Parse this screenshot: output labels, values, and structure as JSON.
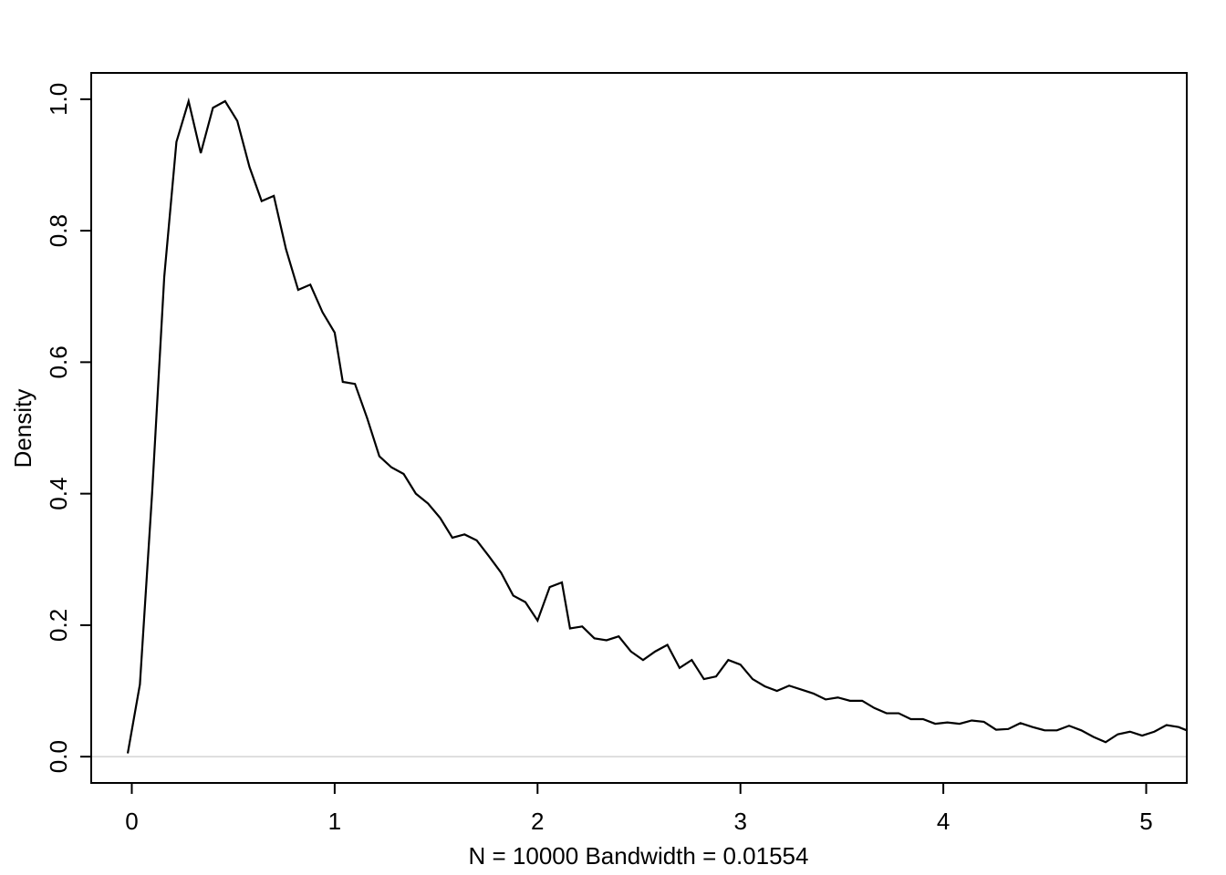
{
  "chart_data": {
    "type": "line",
    "title": "",
    "xlabel": "N = 10000   Bandwidth = 0.01554",
    "ylabel": "Density",
    "xlim": [
      -0.2,
      5.2
    ],
    "ylim": [
      -0.04,
      1.04
    ],
    "xticks": [
      0,
      1,
      2,
      3,
      4,
      5
    ],
    "xtick_labels": [
      "0",
      "1",
      "2",
      "3",
      "4",
      "5"
    ],
    "yticks": [
      0.0,
      0.2,
      0.4,
      0.6,
      0.8,
      1.0
    ],
    "ytick_labels": [
      "0.0",
      "0.2",
      "0.4",
      "0.6",
      "0.8",
      "1.0"
    ],
    "grid": false,
    "baseline": 0,
    "series": [
      {
        "color": "#000000",
        "x": [
          -0.02,
          0.04,
          0.1,
          0.16,
          0.22,
          0.28,
          0.34,
          0.4,
          0.46,
          0.52,
          0.58,
          0.64,
          0.7,
          0.76,
          0.82,
          0.88,
          0.94,
          1.0,
          1.04,
          1.1,
          1.16,
          1.22,
          1.28,
          1.34,
          1.4,
          1.46,
          1.52,
          1.58,
          1.64,
          1.7,
          1.76,
          1.82,
          1.88,
          1.94,
          2.0,
          2.06,
          2.12,
          2.16,
          2.22,
          2.28,
          2.34,
          2.4,
          2.46,
          2.52,
          2.58,
          2.64,
          2.7,
          2.76,
          2.82,
          2.88,
          2.94,
          3.0,
          3.06,
          3.12,
          3.18,
          3.24,
          3.3,
          3.36,
          3.42,
          3.48,
          3.54,
          3.6,
          3.66,
          3.72,
          3.78,
          3.84,
          3.9,
          3.96,
          4.02,
          4.08,
          4.14,
          4.2,
          4.26,
          4.32,
          4.38,
          4.44,
          4.5,
          4.56,
          4.62,
          4.68,
          4.74,
          4.8,
          4.86,
          4.92,
          4.98,
          5.04,
          5.1,
          5.16,
          5.2
        ],
        "y": [
          0.005,
          0.11,
          0.4,
          0.73,
          0.935,
          0.997,
          0.918,
          0.987,
          0.997,
          0.967,
          0.897,
          0.845,
          0.853,
          0.772,
          0.71,
          0.718,
          0.676,
          0.645,
          0.57,
          0.567,
          0.515,
          0.457,
          0.44,
          0.43,
          0.4,
          0.385,
          0.363,
          0.333,
          0.338,
          0.329,
          0.305,
          0.28,
          0.245,
          0.235,
          0.207,
          0.258,
          0.265,
          0.195,
          0.198,
          0.18,
          0.177,
          0.183,
          0.16,
          0.147,
          0.16,
          0.17,
          0.135,
          0.147,
          0.118,
          0.122,
          0.147,
          0.14,
          0.118,
          0.107,
          0.1,
          0.108,
          0.102,
          0.096,
          0.087,
          0.09,
          0.085,
          0.085,
          0.074,
          0.066,
          0.066,
          0.057,
          0.057,
          0.05,
          0.052,
          0.05,
          0.055,
          0.053,
          0.041,
          0.042,
          0.051,
          0.045,
          0.04,
          0.04,
          0.047,
          0.04,
          0.03,
          0.022,
          0.034,
          0.038,
          0.032,
          0.038,
          0.048,
          0.045,
          0.04
        ]
      }
    ]
  }
}
